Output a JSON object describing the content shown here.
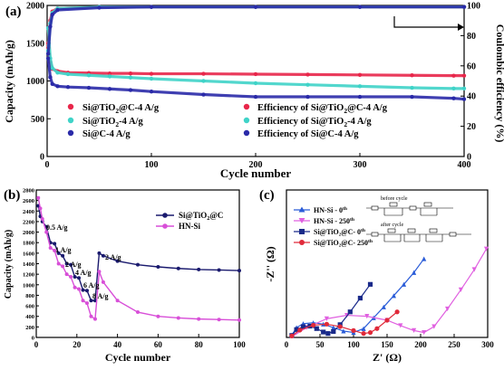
{
  "figure": {
    "panel_labels": [
      "(a)",
      "(b)",
      "(c)"
    ]
  },
  "chart_data": [
    {
      "panel": "(a)",
      "type": "scatter",
      "xlabel": "Cycle number",
      "ylabel": "Capacity (mAh/g)",
      "y2label": "Coulombic efficiency (%)",
      "xlim": [
        0,
        400
      ],
      "ylim": [
        0,
        2000
      ],
      "y2lim": [
        0,
        100
      ],
      "xticks": [
        "0",
        "100",
        "200",
        "300",
        "400"
      ],
      "yticks": [
        "0",
        "500",
        "1000",
        "1500",
        "2000"
      ],
      "y2ticks": [
        "0",
        "20",
        "40",
        "60",
        "80",
        "100"
      ],
      "legend_position": "center",
      "series": [
        {
          "name": "Si@TiO2@C-4 A/g",
          "axis": "left",
          "color": "#e8264a",
          "marker": "circle",
          "x": [
            1,
            3,
            5,
            10,
            20,
            40,
            60,
            80,
            100,
            150,
            200,
            250,
            300,
            350,
            390,
            400
          ],
          "y": [
            1500,
            1250,
            1160,
            1130,
            1110,
            1105,
            1100,
            1100,
            1095,
            1095,
            1090,
            1085,
            1080,
            1075,
            1070,
            1070
          ]
        },
        {
          "name": "Si@TiO2-4 A/g",
          "axis": "left",
          "color": "#3fd3c8",
          "marker": "circle",
          "x": [
            1,
            3,
            5,
            10,
            20,
            40,
            60,
            80,
            100,
            150,
            200,
            250,
            300,
            350,
            390,
            400
          ],
          "y": [
            1700,
            1300,
            1170,
            1110,
            1090,
            1075,
            1060,
            1045,
            1030,
            1000,
            970,
            950,
            930,
            910,
            900,
            900
          ]
        },
        {
          "name": "Si@C-4 A/g",
          "axis": "left",
          "color": "#2a2aa8",
          "marker": "circle",
          "x": [
            1,
            3,
            5,
            10,
            20,
            40,
            60,
            80,
            100,
            150,
            200,
            250,
            300,
            350,
            390,
            400
          ],
          "y": [
            1300,
            1050,
            960,
            930,
            920,
            910,
            895,
            880,
            860,
            820,
            790,
            790,
            790,
            790,
            770,
            760
          ]
        },
        {
          "name": "Efficiency of Si@TiO2@C-4 A/g",
          "axis": "right",
          "color": "#e8264a",
          "marker": "circle",
          "x": [
            1,
            3,
            5,
            10,
            50,
            100,
            200,
            300,
            400
          ],
          "y": [
            72,
            90,
            96,
            98,
            99,
            99,
            99,
            99,
            99
          ]
        },
        {
          "name": "Efficiency of Si@TiO2-4 A/g",
          "axis": "right",
          "color": "#3fd3c8",
          "marker": "circle",
          "x": [
            1,
            3,
            5,
            10,
            50,
            100,
            200,
            300,
            400
          ],
          "y": [
            70,
            88,
            95,
            98,
            99,
            99,
            99,
            99,
            99
          ]
        },
        {
          "name": "Efficiency of Si@C-4 A/g",
          "axis": "right",
          "color": "#2a2aa8",
          "marker": "circle",
          "x": [
            1,
            3,
            5,
            10,
            50,
            100,
            200,
            300,
            400
          ],
          "y": [
            68,
            86,
            94,
            97,
            98.5,
            99,
            99,
            99,
            99
          ]
        }
      ],
      "legend_labels": [
        {
          "base": "Si@TiO",
          "sub": "2",
          "rest": "@C-4 A/g"
        },
        {
          "base": "Si@TiO",
          "sub": "2",
          "rest": "-4 A/g"
        },
        {
          "base": "Si@C-4 A/g",
          "sub": "",
          "rest": ""
        },
        {
          "base": "Efficiency of Si@TiO",
          "sub": "2",
          "rest": "@C-4 A/g"
        },
        {
          "base": "Efficiency of Si@TiO",
          "sub": "2",
          "rest": "-4 A/g"
        },
        {
          "base": "Efficiency of Si@C-4 A/g",
          "sub": "",
          "rest": ""
        }
      ]
    },
    {
      "panel": "(b)",
      "type": "scatter",
      "xlabel": "Cycle number",
      "ylabel": "Capacity (mAh/g)",
      "xlim": [
        0,
        100
      ],
      "ylim": [
        0,
        2800
      ],
      "xticks": [
        "0",
        "20",
        "40",
        "60",
        "80",
        "100"
      ],
      "yticks": [
        "0",
        "200",
        "400",
        "600",
        "800",
        "1000",
        "1200",
        "1400",
        "1600",
        "1800",
        "2000",
        "2200",
        "2400",
        "2600",
        "2800"
      ],
      "legend_position": "top-right",
      "annotations": [
        "0.5 A/g",
        "1 A/g",
        "2 A/g",
        "4 A/g",
        "6 A/g",
        "8 A/g",
        "2 A/g"
      ],
      "series": [
        {
          "name": "Si@TiO2@C",
          "color": "#1a1a6e",
          "marker": "circle",
          "x": [
            1,
            2,
            3,
            5,
            7,
            9,
            11,
            13,
            15,
            17,
            19,
            21,
            23,
            25,
            27,
            29,
            31,
            33,
            40,
            50,
            60,
            70,
            80,
            90,
            100
          ],
          "y": [
            2500,
            2300,
            2200,
            2100,
            1800,
            1780,
            1600,
            1550,
            1400,
            1380,
            1150,
            1130,
            900,
            890,
            700,
            700,
            1600,
            1550,
            1450,
            1380,
            1340,
            1310,
            1290,
            1280,
            1270
          ]
        },
        {
          "name": "HN-Si",
          "color": "#d84fd8",
          "marker": "circle",
          "x": [
            1,
            2,
            3,
            5,
            7,
            9,
            11,
            13,
            15,
            17,
            19,
            21,
            23,
            25,
            27,
            29,
            31,
            33,
            40,
            50,
            60,
            70,
            80,
            90,
            100
          ],
          "y": [
            2650,
            2450,
            2250,
            2000,
            1700,
            1650,
            1400,
            1350,
            1200,
            1150,
            950,
            920,
            700,
            650,
            400,
            350,
            1250,
            1050,
            700,
            480,
            400,
            370,
            350,
            340,
            330
          ]
        }
      ],
      "legend_labels": [
        {
          "base": "Si@TiO",
          "sub": "2",
          "rest": "@C"
        },
        {
          "base": "HN-Si",
          "sub": "",
          "rest": ""
        }
      ]
    },
    {
      "panel": "(c)",
      "type": "scatter",
      "xlabel": "Z' (Ω)",
      "ylabel": "-Z'' (Ω)",
      "xlim": [
        0,
        300
      ],
      "ylim": [
        0,
        300
      ],
      "xticks": [
        "0",
        "50",
        "100",
        "150",
        "200",
        "250",
        "300"
      ],
      "legend_position": "top-left",
      "inset_labels": [
        "before cycle",
        "after cycle"
      ],
      "series": [
        {
          "name": "HN-Si - 0th",
          "color": "#2a5cd8",
          "marker": "triangle-up",
          "x": [
            8,
            15,
            25,
            40,
            55,
            70,
            85,
            100,
            115,
            130,
            145,
            160,
            175,
            190,
            205
          ],
          "y": [
            5,
            20,
            28,
            30,
            27,
            20,
            13,
            10,
            18,
            40,
            62,
            85,
            108,
            132,
            160
          ]
        },
        {
          "name": "HN-Si - 250th",
          "color": "#e060e0",
          "marker": "triangle-down",
          "x": [
            10,
            30,
            60,
            90,
            120,
            150,
            170,
            190,
            205,
            220,
            240,
            260,
            280,
            298
          ],
          "y": [
            3,
            20,
            38,
            45,
            43,
            35,
            24,
            14,
            10,
            22,
            58,
            97,
            138,
            180
          ]
        },
        {
          "name": "Si@TiO2@C- 0th",
          "color": "#1a2a8a",
          "marker": "square",
          "x": [
            8,
            15,
            25,
            35,
            45,
            55,
            62,
            70,
            80,
            95,
            110,
            125
          ],
          "y": [
            4,
            16,
            22,
            23,
            18,
            11,
            8,
            12,
            26,
            52,
            80,
            108
          ]
        },
        {
          "name": "Si@TiO2@C- 250th",
          "color": "#e02a3a",
          "marker": "circle",
          "x": [
            8,
            20,
            40,
            60,
            80,
            100,
            115,
            125,
            135,
            150,
            165
          ],
          "y": [
            3,
            15,
            25,
            27,
            22,
            14,
            8,
            10,
            18,
            35,
            52
          ]
        }
      ],
      "legend_labels": [
        {
          "base": "HN-Si - 0",
          "sup": "th",
          "rest": ""
        },
        {
          "base": "HN-Si - 250",
          "sup": "th",
          "rest": ""
        },
        {
          "base": "Si@TiO₂@C- 0",
          "sup": "th",
          "rest": ""
        },
        {
          "base": "Si@TiO₂@C- 250",
          "sup": "th",
          "rest": ""
        }
      ]
    }
  ]
}
